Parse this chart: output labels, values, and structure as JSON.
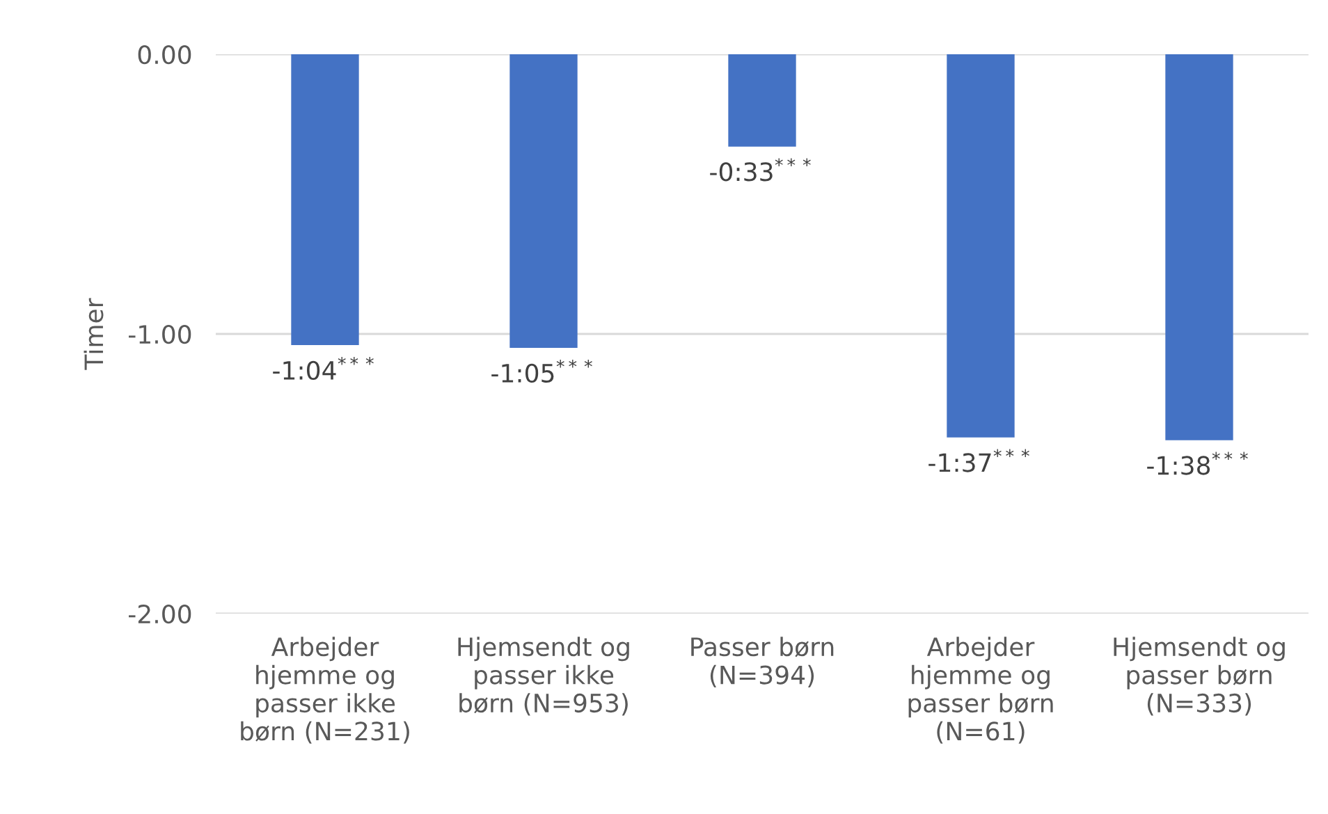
{
  "chart_data": {
    "type": "bar",
    "ylabel": "Timer",
    "categories": [
      "Arbejder\nhjemme og\npasser ikke\nbørn (N=231)",
      "Hjemsendt og\npasser ikke\nbørn (N=953)",
      "Passer børn\n(N=394)",
      "Arbejder\nhjemme og\npasser børn\n(N=61)",
      "Hjemsendt og\npasser børn\n(N=333)"
    ],
    "values": [
      -1.04,
      -1.05,
      -0.33,
      -1.37,
      -1.38
    ],
    "value_labels": [
      "-1:04$^{***}$",
      "-1:05$^{***}$",
      "-0:33$^{***}$",
      "-1:37$^{***}$",
      "-1:38$^{***}$"
    ],
    "color": "#4472c4",
    "ylim": [
      -2,
      0
    ],
    "yticks": [
      {
        "value": 0,
        "label": "0.00"
      },
      {
        "value": -1,
        "label": "-1.00"
      },
      {
        "value": -2,
        "label": "-2.00"
      }
    ],
    "grid": "y",
    "legend": false
  }
}
